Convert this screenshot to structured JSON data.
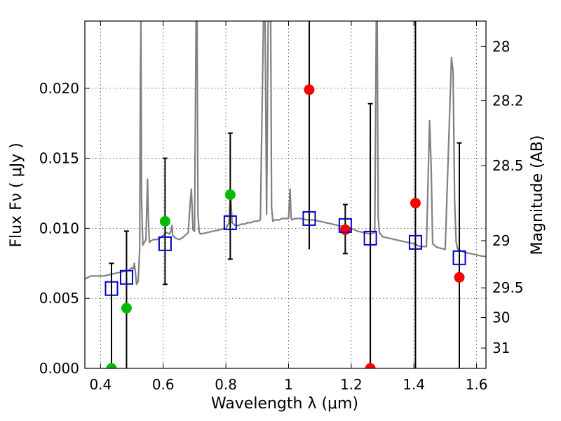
{
  "chart_data": {
    "type": "scatter",
    "xlabel": "Wavelength  λ (μm)",
    "ylabel": "Flux  Fν  ( μJy )",
    "y2label": "Magnitude (AB)",
    "xlim": [
      0.35,
      1.63
    ],
    "ylim": [
      0.0,
      0.0248
    ],
    "grid": true,
    "x_ticks": [
      0.4,
      0.6,
      0.8,
      1.0,
      1.2,
      1.4,
      1.6
    ],
    "x_tick_labels": [
      "0.4",
      "0.6",
      "0.8",
      "1",
      "1.2",
      "1.4",
      "1.6"
    ],
    "y_ticks": [
      0.0,
      0.005,
      0.01,
      0.015,
      0.02
    ],
    "y_tick_labels": [
      "0.000",
      "0.005",
      "0.010",
      "0.015",
      "0.020"
    ],
    "y2_ticks": [
      {
        "flux": 0.02298,
        "label": "28"
      },
      {
        "flux": 0.01911,
        "label": "28.2"
      },
      {
        "flux": 0.01448,
        "label": "28.5"
      },
      {
        "flux": 0.00912,
        "label": "29"
      },
      {
        "flux": 0.00575,
        "label": "29.5"
      },
      {
        "flux": 0.00363,
        "label": "30"
      },
      {
        "flux": 0.00145,
        "label": "31"
      }
    ],
    "series": [
      {
        "name": "model spectrum",
        "style": "line",
        "color": "#808080",
        "x": [
          0.35,
          0.37,
          0.39,
          0.41,
          0.43,
          0.45,
          0.47,
          0.49,
          0.5,
          0.505,
          0.508,
          0.512,
          0.515,
          0.52,
          0.525,
          0.527,
          0.529,
          0.531,
          0.535,
          0.54,
          0.545,
          0.55,
          0.553,
          0.556,
          0.56,
          0.57,
          0.58,
          0.59,
          0.6,
          0.61,
          0.62,
          0.625,
          0.628,
          0.63,
          0.64,
          0.65,
          0.66,
          0.67,
          0.68,
          0.685,
          0.69,
          0.695,
          0.7,
          0.705,
          0.708,
          0.711,
          0.715,
          0.72,
          0.74,
          0.76,
          0.78,
          0.8,
          0.81,
          0.815,
          0.82,
          0.83,
          0.84,
          0.85,
          0.86,
          0.87,
          0.88,
          0.89,
          0.9,
          0.91,
          0.92,
          0.925,
          0.93,
          0.935,
          0.94,
          0.943,
          0.946,
          0.95,
          0.955,
          0.96,
          0.97,
          0.98,
          0.99,
          1.0,
          1.005,
          1.008,
          1.011,
          1.02,
          1.04,
          1.06,
          1.08,
          1.1,
          1.12,
          1.14,
          1.16,
          1.18,
          1.2,
          1.22,
          1.24,
          1.26,
          1.275,
          1.28,
          1.283,
          1.286,
          1.29,
          1.3,
          1.32,
          1.34,
          1.36,
          1.38,
          1.4,
          1.42,
          1.44,
          1.45,
          1.455,
          1.46,
          1.47,
          1.48,
          1.5,
          1.52,
          1.525,
          1.53,
          1.535,
          1.54,
          1.56,
          1.58,
          1.6,
          1.62,
          1.63
        ],
        "y": [
          0.0064,
          0.0066,
          0.0066,
          0.0066,
          0.0067,
          0.0068,
          0.0069,
          0.007,
          0.0072,
          0.0071,
          0.0075,
          0.0067,
          0.006,
          0.0062,
          0.0085,
          0.02,
          0.0248,
          0.012,
          0.0088,
          0.009,
          0.0092,
          0.0135,
          0.0105,
          0.009,
          0.0091,
          0.0092,
          0.0092,
          0.0093,
          0.0095,
          0.0097,
          0.0096,
          0.0098,
          0.0102,
          0.0095,
          0.0093,
          0.0092,
          0.0093,
          0.0095,
          0.0097,
          0.0115,
          0.0128,
          0.0099,
          0.0098,
          0.0248,
          0.0248,
          0.011,
          0.0097,
          0.0096,
          0.0097,
          0.0098,
          0.0099,
          0.01,
          0.0104,
          0.0125,
          0.0104,
          0.0102,
          0.0102,
          0.0103,
          0.0103,
          0.0104,
          0.0104,
          0.0105,
          0.0105,
          0.0106,
          0.0248,
          0.0248,
          0.011,
          0.0248,
          0.0248,
          0.0248,
          0.0115,
          0.0105,
          0.0106,
          0.0106,
          0.0106,
          0.0107,
          0.0107,
          0.0107,
          0.0128,
          0.0108,
          0.0106,
          0.0107,
          0.0107,
          0.0106,
          0.0106,
          0.0105,
          0.0104,
          0.0103,
          0.0102,
          0.0101,
          0.01,
          0.0098,
          0.0097,
          0.0096,
          0.0097,
          0.0248,
          0.0248,
          0.0108,
          0.0097,
          0.0094,
          0.0093,
          0.0092,
          0.0091,
          0.009,
          0.0089,
          0.0087,
          0.0087,
          0.0177,
          0.0145,
          0.0089,
          0.0087,
          0.0086,
          0.0085,
          0.0222,
          0.0212,
          0.012,
          0.009,
          0.0085,
          0.0083,
          0.0082,
          0.0081,
          0.008,
          0.008
        ]
      },
      {
        "name": "green points",
        "style": "circle",
        "color": "#00bb00",
        "points": [
          {
            "x": 0.435,
            "y": 0.0
          },
          {
            "x": 0.483,
            "y": 0.0043
          },
          {
            "x": 0.606,
            "y": 0.0105
          },
          {
            "x": 0.814,
            "y": 0.0124
          }
        ]
      },
      {
        "name": "red points",
        "style": "circle",
        "color": "#ff0000",
        "points": [
          {
            "x": 1.066,
            "y": 0.0199
          },
          {
            "x": 1.181,
            "y": 0.0099
          },
          {
            "x": 1.261,
            "y": 0.0
          },
          {
            "x": 1.405,
            "y": 0.0118
          },
          {
            "x": 1.545,
            "y": 0.0065
          }
        ]
      },
      {
        "name": "blue squares",
        "style": "square",
        "color": "#0000cc",
        "points": [
          {
            "x": 0.435,
            "y": 0.0057
          },
          {
            "x": 0.483,
            "y": 0.0065
          },
          {
            "x": 0.606,
            "y": 0.0089
          },
          {
            "x": 0.814,
            "y": 0.0104
          },
          {
            "x": 1.066,
            "y": 0.0107
          },
          {
            "x": 1.181,
            "y": 0.0102
          },
          {
            "x": 1.261,
            "y": 0.0093
          },
          {
            "x": 1.405,
            "y": 0.009
          },
          {
            "x": 1.545,
            "y": 0.0079
          }
        ]
      }
    ],
    "error_bars": [
      {
        "x": 0.435,
        "low": 0.0,
        "high": 0.0075,
        "capped": true
      },
      {
        "x": 0.483,
        "low": 0.0,
        "high": 0.0098,
        "capped": true
      },
      {
        "x": 0.606,
        "low": 0.006,
        "high": 0.015,
        "capped": true
      },
      {
        "x": 0.814,
        "low": 0.0078,
        "high": 0.0168,
        "capped": true
      },
      {
        "x": 1.066,
        "low": 0.0085,
        "high": 0.0248,
        "capped": false
      },
      {
        "x": 1.181,
        "low": 0.0082,
        "high": 0.0117,
        "capped": true
      },
      {
        "x": 1.261,
        "low": 0.0,
        "high": 0.0189,
        "capped": true
      },
      {
        "x": 1.405,
        "low": 0.0,
        "high": 0.0248,
        "capped": false
      },
      {
        "x": 1.545,
        "low": 0.0,
        "high": 0.0161,
        "capped": true
      }
    ]
  }
}
